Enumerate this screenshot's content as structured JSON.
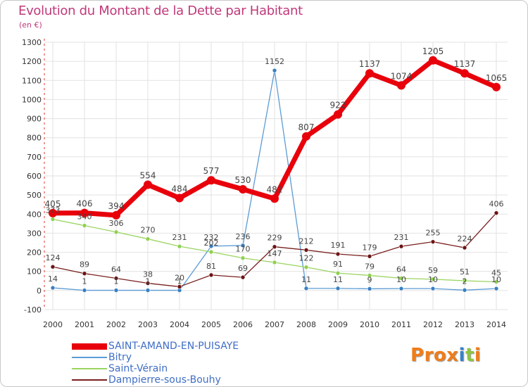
{
  "title": "Evolution du Montant de la Dette par Habitant",
  "unit": "(en €)",
  "logo": {
    "text": "Proxiti",
    "colors": [
      "#ef7d1a",
      "#ef7d1a",
      "#ef7d1a",
      "#ef7d1a",
      "#3b82c4",
      "#8cc63f",
      "#ef7d1a"
    ]
  },
  "chart_data": {
    "type": "line",
    "x": [
      2000,
      2001,
      2002,
      2003,
      2004,
      2005,
      2006,
      2007,
      2008,
      2009,
      2010,
      2011,
      2012,
      2013,
      2014
    ],
    "ylim": [
      -100,
      1300
    ],
    "yticks": [
      -100,
      0,
      100,
      200,
      300,
      400,
      500,
      600,
      700,
      800,
      900,
      1000,
      1100,
      1200,
      1300
    ],
    "grid": true,
    "legend_position": "bottom-left",
    "series": [
      {
        "name": "SAINT-AMAND-EN-PUISAYE",
        "color": "#e8000b",
        "values": [
          405,
          406,
          394,
          554,
          484,
          577,
          530,
          481,
          807,
          922,
          1137,
          1074,
          1205,
          1137,
          1065
        ]
      },
      {
        "name": "Bitry",
        "color": "#5b9bd5",
        "values": [
          14,
          1,
          1,
          1,
          1,
          232,
          236,
          1152,
          11,
          11,
          9,
          10,
          10,
          2,
          10
        ]
      },
      {
        "name": "Saint-Vérain",
        "color": "#9ad45f",
        "values": [
          373,
          340,
          306,
          270,
          231,
          202,
          170,
          147,
          122,
          91,
          79,
          64,
          59,
          51,
          45
        ]
      },
      {
        "name": "Dampierre-sous-Bouhy",
        "color": "#7a1f1f",
        "values": [
          124,
          89,
          64,
          38,
          20,
          81,
          69,
          229,
          212,
          191,
          179,
          231,
          255,
          224,
          406
        ]
      }
    ]
  }
}
